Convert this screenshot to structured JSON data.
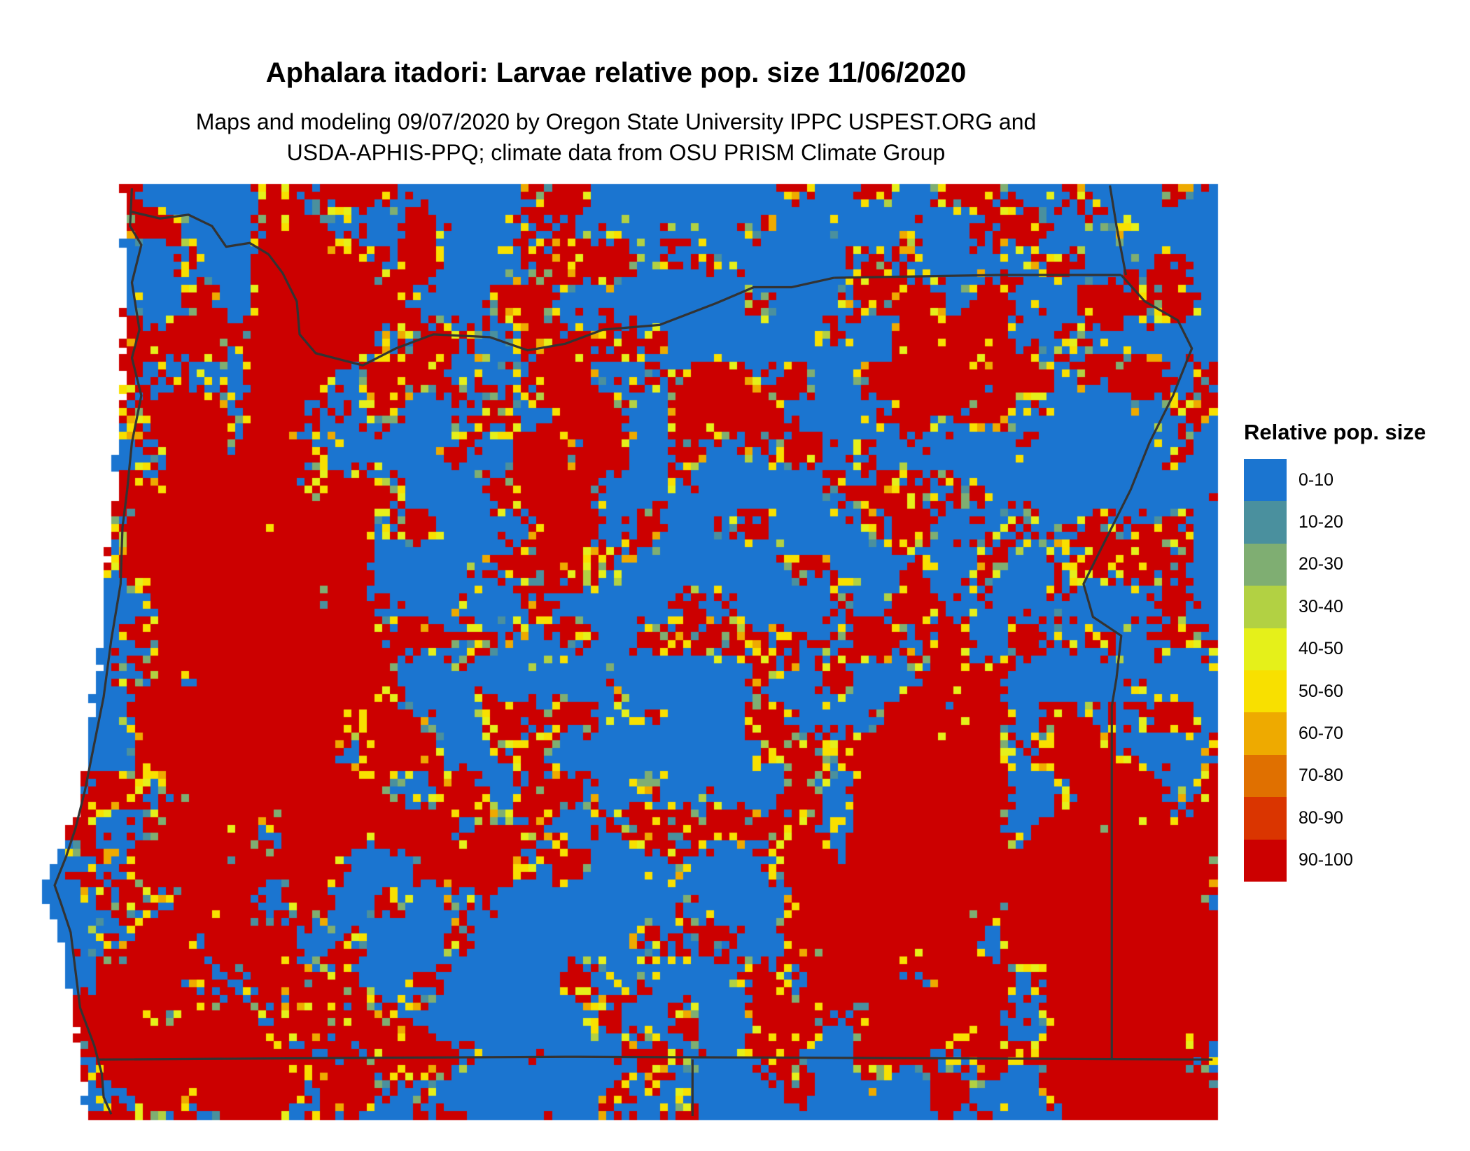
{
  "title": "Aphalara itadori: Larvae relative pop. size 11/06/2020",
  "subtitle_line1": "Maps and modeling 09/07/2020 by Oregon State University IPPC USPEST.ORG and",
  "subtitle_line2": "USDA-APHIS-PPQ; climate data from OSU PRISM Climate Group",
  "legend": {
    "title": "Relative pop. size",
    "items": [
      {
        "label": "0-10",
        "color": "#1b75d0"
      },
      {
        "label": "10-20",
        "color": "#4a909e"
      },
      {
        "label": "20-30",
        "color": "#7fae72"
      },
      {
        "label": "30-40",
        "color": "#b2d143"
      },
      {
        "label": "40-50",
        "color": "#e5f01a"
      },
      {
        "label": "50-60",
        "color": "#f8e000"
      },
      {
        "label": "60-70",
        "color": "#eeaa00"
      },
      {
        "label": "70-80",
        "color": "#e07000"
      },
      {
        "label": "80-90",
        "color": "#da3500"
      },
      {
        "label": "90-100",
        "color": "#cc0000"
      }
    ]
  },
  "map": {
    "region": "Oregon and surrounding areas",
    "border_color": "#333333",
    "ocean_color": "#ffffff"
  }
}
